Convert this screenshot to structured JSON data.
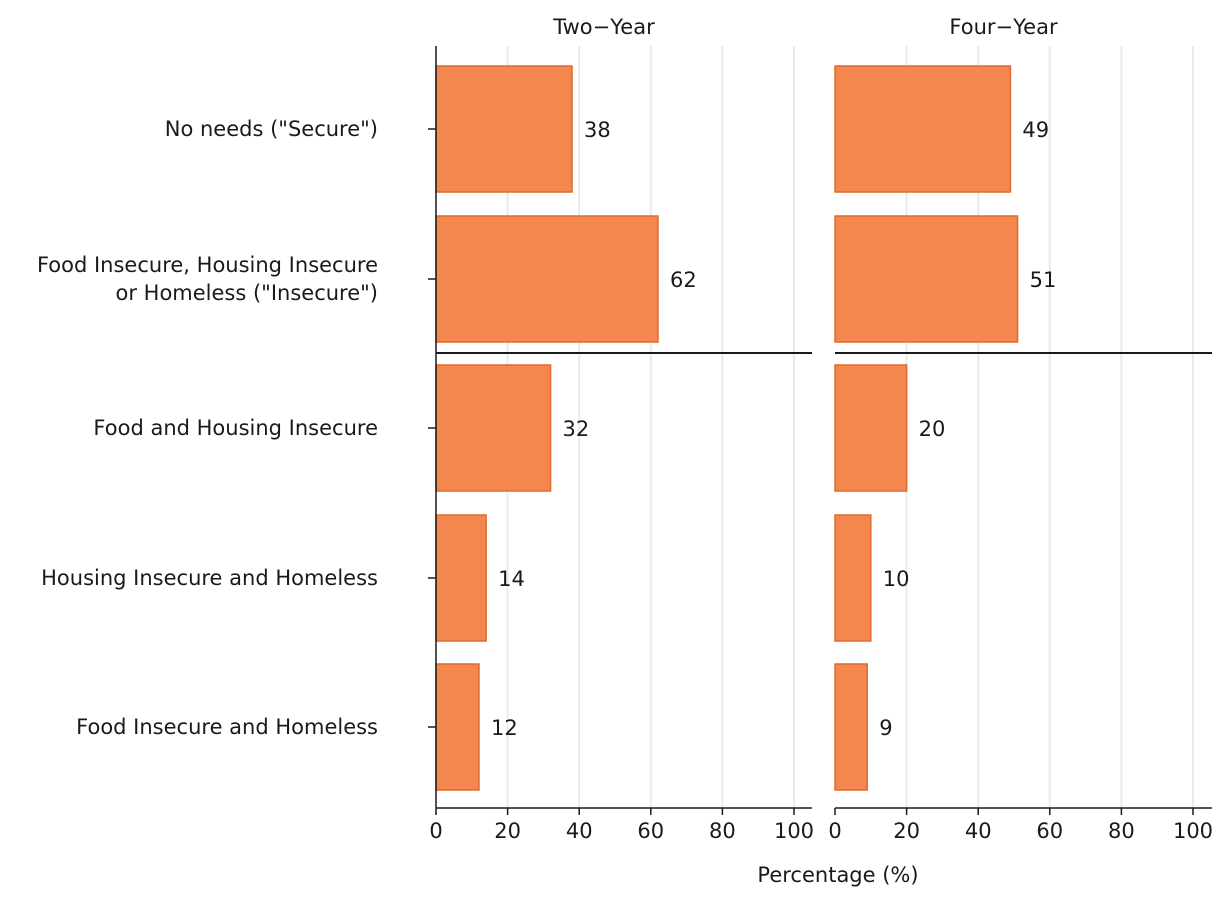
{
  "chart_data": {
    "type": "bar",
    "orientation": "horizontal",
    "xlabel": "Percentage (%)",
    "xlim": [
      0,
      105
    ],
    "xticks": [
      0,
      20,
      40,
      60,
      80,
      100
    ],
    "grid": "vertical gridlines",
    "bar_color": "#F4874E",
    "bar_edge_color": "#E06A2E",
    "grid_color": "#E3EEEC",
    "categories": [
      "No needs (\"Secure\")",
      "Food Insecure, Housing Insecure or Homeless (\"Insecure\")",
      "Food and Housing Insecure",
      "Housing Insecure and Homeless",
      "Food Insecure and Homeless"
    ],
    "category_lines": [
      [
        "No needs (\"Secure\")"
      ],
      [
        "Food Insecure, Housing Insecure",
        "or Homeless (\"Insecure\")"
      ],
      [
        "Food and Housing Insecure"
      ],
      [
        "Housing Insecure and Homeless"
      ],
      [
        "Food Insecure and Homeless"
      ]
    ],
    "separator_after_category_index": 1,
    "facets": [
      {
        "title": "Two−Year",
        "values": [
          38,
          62,
          32,
          14,
          12
        ]
      },
      {
        "title": "Four−Year",
        "values": [
          49,
          51,
          20,
          10,
          9
        ]
      }
    ]
  }
}
